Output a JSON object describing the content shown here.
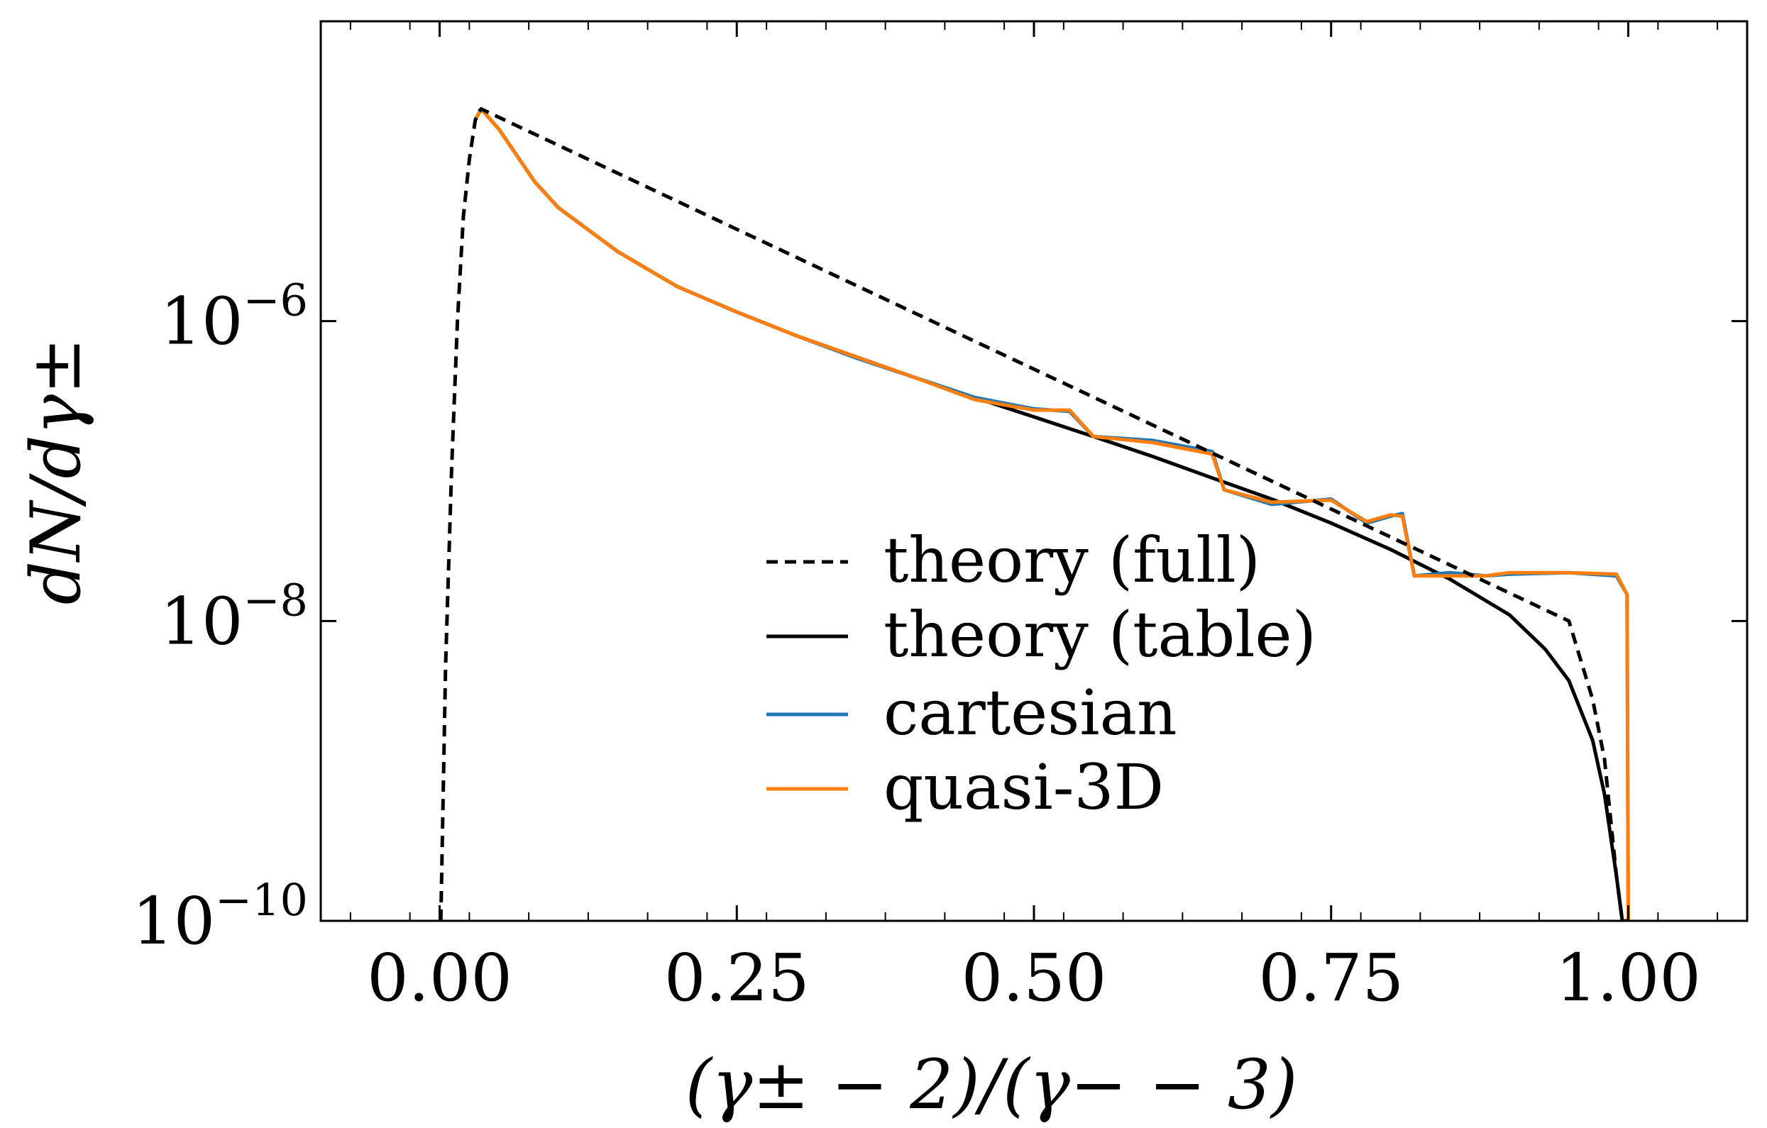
{
  "chart_data": {
    "type": "line",
    "title": "",
    "xlabel": "(γ± − 2)/(γ− − 3)",
    "ylabel": "dN/dγ±",
    "xlim": [
      -0.1,
      1.1
    ],
    "ylim": [
      1e-10,
      0.0001
    ],
    "yscale": "log",
    "grid": false,
    "legend_position": "lower-center",
    "x_ticks": [
      "0.00",
      "0.25",
      "0.50",
      "0.75",
      "1.00"
    ],
    "x_tick_values": [
      0.0,
      0.25,
      0.5,
      0.75,
      1.0
    ],
    "y_ticks": [
      {
        "base": "10",
        "exp": "−6",
        "value": 1e-06
      },
      {
        "base": "10",
        "exp": "−8",
        "value": 1e-08
      },
      {
        "base": "10",
        "exp": "−10",
        "value": 1e-10
      }
    ],
    "series": [
      {
        "name": "theory (full)",
        "color": "#000000",
        "style": "dashed",
        "x": [
          0.001,
          0.005,
          0.01,
          0.015,
          0.02,
          0.025,
          0.03,
          0.033,
          0.035,
          0.95,
          0.97,
          0.98,
          0.99,
          0.995,
          0.998,
          0.999
        ],
        "y": [
          1e-10,
          5e-09,
          1e-07,
          1e-06,
          5e-06,
          1.2e-05,
          2.2e-05,
          2.5e-05,
          2.6e-05,
          1e-08,
          3e-09,
          1.2e-09,
          2e-10,
          1e-10,
          1e-10,
          1e-10
        ]
      },
      {
        "name": "theory (table)",
        "color": "#000000",
        "style": "solid",
        "x": [
          0.03,
          0.035,
          0.05,
          0.08,
          0.1,
          0.15,
          0.2,
          0.25,
          0.3,
          0.35,
          0.4,
          0.45,
          0.5,
          0.55,
          0.6,
          0.65,
          0.7,
          0.75,
          0.8,
          0.85,
          0.9,
          0.93,
          0.95,
          0.97,
          0.98,
          0.99,
          0.995
        ],
        "y": [
          2.2e-05,
          2.6e-05,
          1.9e-05,
          8.5e-06,
          5.7e-06,
          2.9e-06,
          1.7e-06,
          1.15e-06,
          8e-07,
          5.8e-07,
          4.2e-07,
          3.1e-07,
          2.3e-07,
          1.7e-07,
          1.25e-07,
          9e-08,
          6.5e-08,
          4.5e-08,
          3e-08,
          1.9e-08,
          1.1e-08,
          6.5e-09,
          4e-09,
          1.6e-09,
          7e-10,
          2e-10,
          1e-10
        ]
      },
      {
        "name": "cartesian",
        "color": "#1f77b4",
        "style": "solid",
        "x": [
          0.03,
          0.035,
          0.05,
          0.08,
          0.1,
          0.15,
          0.2,
          0.25,
          0.3,
          0.35,
          0.4,
          0.45,
          0.5,
          0.53,
          0.55,
          0.6,
          0.65,
          0.66,
          0.7,
          0.75,
          0.78,
          0.8,
          0.81,
          0.82,
          0.85,
          0.88,
          0.9,
          0.95,
          0.99,
          0.999,
          1.0
        ],
        "y": [
          2.2e-05,
          2.6e-05,
          1.9e-05,
          8.5e-06,
          5.7e-06,
          2.9e-06,
          1.7e-06,
          1.15e-06,
          8e-07,
          5.7e-07,
          4.2e-07,
          3.1e-07,
          2.6e-07,
          2.5e-07,
          1.7e-07,
          1.6e-07,
          1.35e-07,
          7.5e-08,
          6e-08,
          6.5e-08,
          4.5e-08,
          5e-08,
          5.2e-08,
          2e-08,
          2.1e-08,
          2e-08,
          2.05e-08,
          2.1e-08,
          2e-08,
          1.5e-08,
          1e-10
        ]
      },
      {
        "name": "quasi-3D",
        "color": "#ff7f0e",
        "style": "solid",
        "x": [
          0.03,
          0.035,
          0.05,
          0.08,
          0.1,
          0.15,
          0.2,
          0.25,
          0.3,
          0.35,
          0.4,
          0.45,
          0.5,
          0.53,
          0.55,
          0.6,
          0.65,
          0.66,
          0.7,
          0.75,
          0.78,
          0.8,
          0.81,
          0.82,
          0.85,
          0.88,
          0.9,
          0.95,
          0.99,
          0.999,
          1.0
        ],
        "y": [
          2.2e-05,
          2.6e-05,
          1.9e-05,
          8.5e-06,
          5.7e-06,
          2.9e-06,
          1.7e-06,
          1.15e-06,
          8e-07,
          5.8e-07,
          4.2e-07,
          3e-07,
          2.55e-07,
          2.55e-07,
          1.7e-07,
          1.55e-07,
          1.3e-07,
          7.5e-08,
          6.2e-08,
          6.4e-08,
          4.6e-08,
          5.1e-08,
          5e-08,
          2e-08,
          2e-08,
          2e-08,
          2.1e-08,
          2.1e-08,
          2.05e-08,
          1.5e-08,
          1e-10
        ]
      }
    ],
    "legend": [
      "theory (full)",
      "theory (table)",
      "cartesian",
      "quasi-3D"
    ]
  }
}
